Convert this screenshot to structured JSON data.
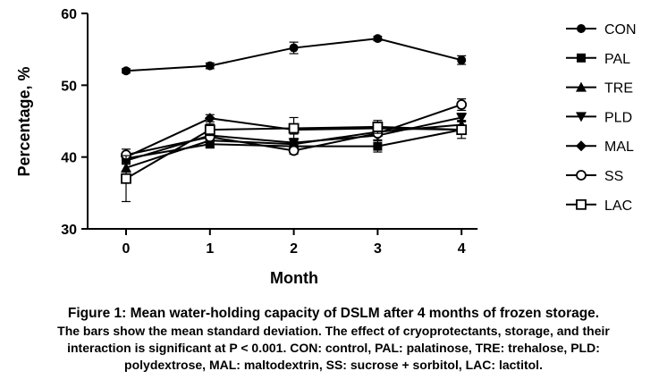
{
  "chart_data": {
    "type": "line",
    "title": "",
    "xlabel": "Month",
    "ylabel": "Percentage, %",
    "x": [
      0,
      1,
      2,
      3,
      4
    ],
    "xticks": [
      "0",
      "1",
      "2",
      "3",
      "4"
    ],
    "ylim": [
      30,
      60
    ],
    "yticks": [
      "30",
      "40",
      "50",
      "60"
    ],
    "grid": false,
    "legend_position": "right",
    "color": "#000000",
    "series": [
      {
        "name": "CON",
        "marker": "filled-circle",
        "values": [
          52.0,
          52.7,
          55.2,
          56.5,
          53.5
        ],
        "errors": [
          0.3,
          0.4,
          0.8,
          0.3,
          0.6
        ]
      },
      {
        "name": "PAL",
        "marker": "filled-square",
        "values": [
          39.8,
          41.8,
          41.5,
          41.5,
          43.8
        ],
        "errors": [
          0.5,
          0.5,
          0.6,
          0.8,
          0.5
        ]
      },
      {
        "name": "TRE",
        "marker": "filled-triangle-up",
        "values": [
          38.5,
          42.3,
          41.8,
          43.5,
          44.5
        ],
        "errors": [
          0.6,
          0.5,
          0.5,
          0.6,
          0.6
        ]
      },
      {
        "name": "PLD",
        "marker": "filled-triangle-down",
        "values": [
          39.5,
          43.0,
          42.0,
          43.0,
          45.5
        ],
        "errors": [
          0.5,
          0.6,
          0.6,
          0.7,
          0.6
        ]
      },
      {
        "name": "MAL",
        "marker": "filled-diamond",
        "values": [
          40.0,
          45.4,
          43.8,
          44.0,
          43.8
        ],
        "errors": [
          0.5,
          0.5,
          0.6,
          0.7,
          0.6
        ]
      },
      {
        "name": "SS",
        "marker": "open-circle",
        "values": [
          40.3,
          42.8,
          40.9,
          43.3,
          47.3
        ],
        "errors": [
          0.8,
          0.6,
          0.5,
          0.9,
          0.8
        ]
      },
      {
        "name": "LAC",
        "marker": "open-square",
        "values": [
          37.0,
          43.8,
          44.0,
          44.2,
          43.8
        ],
        "errors": [
          3.2,
          0.8,
          1.5,
          0.9,
          1.2
        ]
      }
    ]
  },
  "caption": {
    "title": "Figure 1: Mean water-holding capacity of DSLM after 4 months of frozen storage.",
    "line1": "The bars show the mean standard deviation. The effect of cryoprotectants, storage, and their",
    "line2": "interaction is significant at P < 0.001.  CON: control, PAL: palatinose, TRE: trehalose, PLD:",
    "line3": "polydextrose, MAL: maltodextrin, SS: sucrose + sorbitol, LAC: lactitol."
  }
}
